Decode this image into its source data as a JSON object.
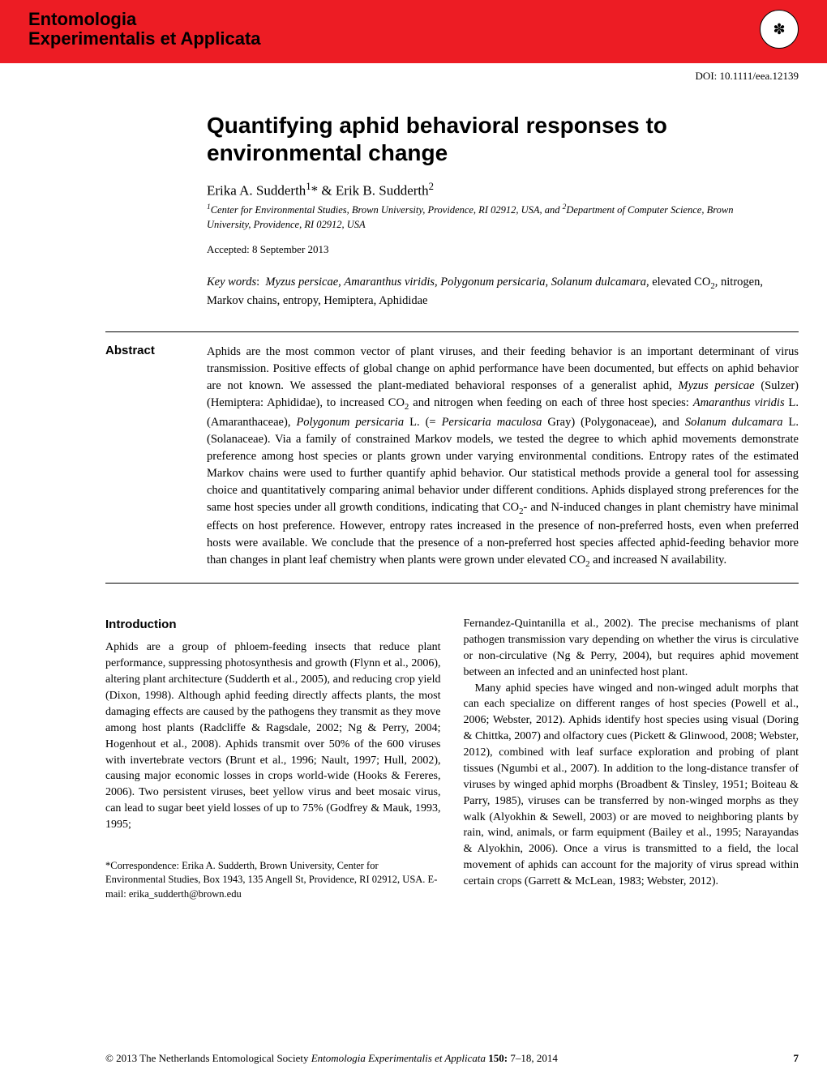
{
  "header": {
    "journal_line1": "Entomologia",
    "journal_line2": "Experimentalis et Applicata",
    "doi": "DOI: 10.1111/eea.12139",
    "logo_glyph": "✽"
  },
  "article": {
    "title": "Quantifying aphid behavioral responses to environmental change",
    "authors_html": "Erika A. Sudderth<sup>1</sup>* & Erik B. Sudderth<sup>2</sup>",
    "affiliations_html": "<sup>1</sup>Center for Environmental Studies, Brown University, Providence, RI 02912, USA, and <sup>2</sup>Department of Computer Science, Brown University, Providence, RI 02912, USA",
    "accepted": "Accepted: 8 September 2013",
    "keywords_label": "Key words",
    "keywords_html": "<i>Myzus persicae</i>, <i>Amaranthus viridis</i>, <i>Polygonum persicaria</i>, <i>Solanum dulcamara</i>, elevated CO<sub>2</sub>, nitrogen, Markov chains, entropy, Hemiptera, Aphididae"
  },
  "abstract": {
    "label": "Abstract",
    "text_html": "Aphids are the most common vector of plant viruses, and their feeding behavior is an important determinant of virus transmission. Positive effects of global change on aphid performance have been documented, but effects on aphid behavior are not known. We assessed the plant-mediated behavioral responses of a generalist aphid, <i>Myzus persicae</i> (Sulzer) (Hemiptera: Aphididae), to increased CO<sub>2</sub> and nitrogen when feeding on each of three host species: <i>Amaranthus viridis</i> L. (Amaranthaceae), <i>Polygonum persicaria</i> L. (= <i>Persicaria maculosa</i> Gray) (Polygonaceae), and <i>Solanum dulcamara</i> L. (Solanaceae). Via a family of constrained Markov models, we tested the degree to which aphid movements demonstrate preference among host species or plants grown under varying environmental conditions. Entropy rates of the estimated Markov chains were used to further quantify aphid behavior. Our statistical methods provide a general tool for assessing choice and quantitatively comparing animal behavior under different conditions. Aphids displayed strong preferences for the same host species under all growth conditions, indicating that CO<sub>2</sub>- and N-induced changes in plant chemistry have minimal effects on host preference. However, entropy rates increased in the presence of non-preferred hosts, even when preferred hosts were available. We conclude that the presence of a non-preferred host species affected aphid-feeding behavior more than changes in plant leaf chemistry when plants were grown under elevated CO<sub>2</sub> and increased N availability."
  },
  "body": {
    "intro_heading": "Introduction",
    "col1_p1": "Aphids are a group of phloem-feeding insects that reduce plant performance, suppressing photosynthesis and growth (Flynn et al., 2006), altering plant architecture (Sudderth et al., 2005), and reducing crop yield (Dixon, 1998). Although aphid feeding directly affects plants, the most damaging effects are caused by the pathogens they transmit as they move among host plants (Radcliffe & Ragsdale, 2002; Ng & Perry, 2004; Hogenhout et al., 2008). Aphids transmit over 50% of the 600 viruses with invertebrate vectors (Brunt et al., 1996; Nault, 1997; Hull, 2002), causing major economic losses in crops world-wide (Hooks & Fereres, 2006). Two persistent viruses, beet yellow virus and beet mosaic virus, can lead to sugar beet yield losses of up to 75% (Godfrey & Mauk, 1993, 1995;",
    "col2_p1": "Fernandez-Quintanilla et al., 2002). The precise mechanisms of plant pathogen transmission vary depending on whether the virus is circulative or non-circulative (Ng & Perry, 2004), but requires aphid movement between an infected and an uninfected host plant.",
    "col2_p2": "Many aphid species have winged and non-winged adult morphs that can each specialize on different ranges of host species (Powell et al., 2006; Webster, 2012). Aphids identify host species using visual (Doring & Chittka, 2007) and olfactory cues (Pickett & Glinwood, 2008; Webster, 2012), combined with leaf surface exploration and probing of plant tissues (Ngumbi et al., 2007). In addition to the long-distance transfer of viruses by winged aphid morphs (Broadbent & Tinsley, 1951; Boiteau & Parry, 1985), viruses can be transferred by non-winged morphs as they walk (Alyokhin & Sewell, 2003) or are moved to neighboring plants by rain, wind, animals, or farm equipment (Bailey et al., 1995; Narayandas & Alyokhin, 2006). Once a virus is transmitted to a field, the local movement of aphids can account for the majority of virus spread within certain crops (Garrett & McLean, 1983; Webster, 2012).",
    "correspondence": "*Correspondence: Erika A. Sudderth, Brown University, Center for Environmental Studies, Box 1943, 135 Angell St, Providence, RI 02912, USA. E-mail: erika_sudderth@brown.edu"
  },
  "footer": {
    "left_html": "© 2013 The Netherlands Entomological Society <i>Entomologia Experimentalis et Applicata</i> <b>150:</b> 7–18, 2014",
    "page": "7"
  },
  "colors": {
    "header_bg": "#ed1c24",
    "text": "#000000",
    "page_bg": "#ffffff"
  }
}
